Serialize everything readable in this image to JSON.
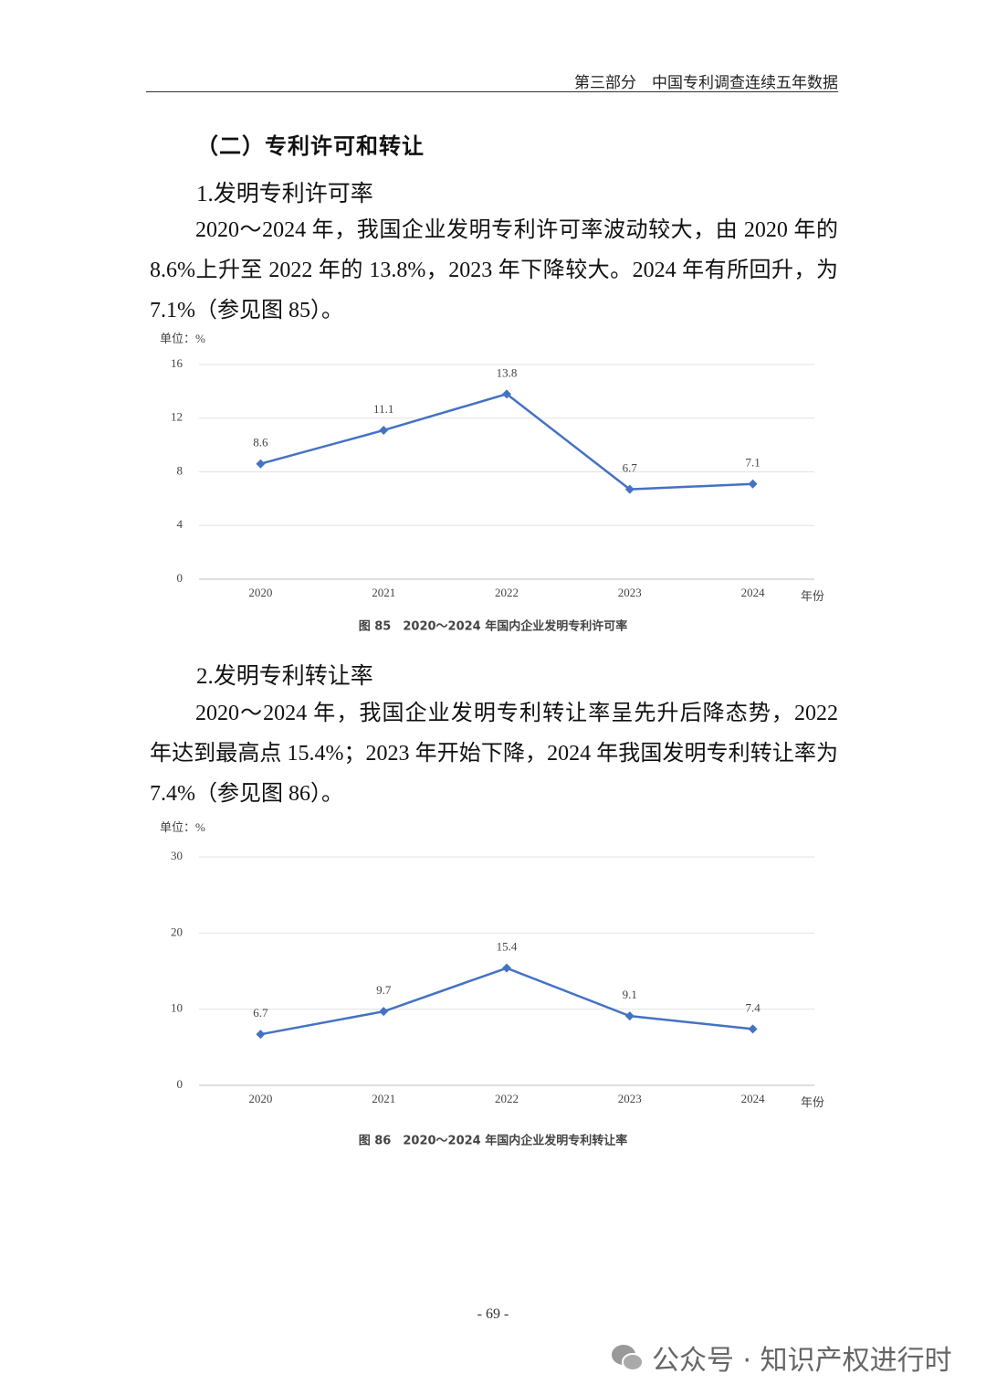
{
  "header": "第三部分　中国专利调查连续五年数据",
  "section_title": "（二）专利许可和转让",
  "subsections": [
    {
      "title": "1.发明专利许可率",
      "paragraph": "2020～2024 年，我国企业发明专利许可率波动较大，由 2020 年的 8.6%上升至 2022 年的 13.8%，2023 年下降较大。2024 年有所回升，为 7.1%（参见图 85）。"
    },
    {
      "title": "2.发明专利转让率",
      "paragraph": "2020～2024 年，我国企业发明专利转让率呈先升后降态势，2022 年达到最高点 15.4%；2023 年开始下降，2024 年我国发明专利转让率为 7.4%（参见图 86）。"
    }
  ],
  "chart_data": [
    {
      "type": "line",
      "y_label": "单位：%",
      "x_label": "年份",
      "categories": [
        "2020",
        "2021",
        "2022",
        "2023",
        "2024"
      ],
      "values": [
        8.6,
        11.1,
        13.8,
        6.7,
        7.1
      ],
      "color": "#4472c4",
      "ylim": [
        0,
        16
      ],
      "yticks": [
        0,
        4,
        8,
        12,
        16
      ],
      "grid": true,
      "caption": "图 85　2020～2024 年国内企业发明专利许可率"
    },
    {
      "type": "line",
      "y_label": "单位：%",
      "x_label": "年份",
      "categories": [
        "2020",
        "2021",
        "2022",
        "2023",
        "2024"
      ],
      "values": [
        6.7,
        9.7,
        15.4,
        9.1,
        7.4
      ],
      "color": "#4472c4",
      "ylim": [
        0,
        30
      ],
      "yticks": [
        0,
        10,
        20,
        30
      ],
      "grid": true,
      "caption": "图 86　2020～2024 年国内企业发明专利转让率"
    }
  ],
  "page_number": "- 69 -",
  "watermark": "公众号 · 知识产权进行时"
}
